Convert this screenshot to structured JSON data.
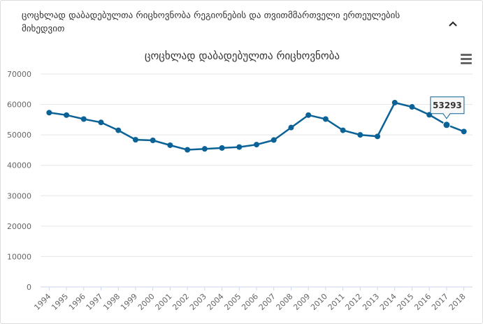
{
  "header": {
    "title": "ცოცხლად დაბადებულთა რიცხოვნობა რეგიონების და თვითმმართველი ერთეულების მიხედვით",
    "collapse_icon": "chevron-up-icon"
  },
  "toolbar": {
    "menu_icon": "hamburger-menu-icon"
  },
  "colors": {
    "series": "#0a6296",
    "grid": "#e6e6e6",
    "axis": "#ccd6eb"
  },
  "chart_data": {
    "type": "line",
    "title": "ცოცხლად დაბადებულთა რიცხოვნობა",
    "xlabel": "",
    "ylabel": "",
    "x": [
      "1994",
      "1995",
      "1996",
      "1997",
      "1998",
      "1999",
      "2000",
      "2001",
      "2002",
      "2003",
      "2004",
      "2005",
      "2006",
      "2007",
      "2008",
      "2009",
      "2010",
      "2011",
      "2012",
      "2013",
      "2014",
      "2015",
      "2016",
      "2017",
      "2018"
    ],
    "series": [
      {
        "values": [
          57300,
          56500,
          55200,
          54100,
          51500,
          48400,
          48200,
          46600,
          45100,
          45400,
          45700,
          46000,
          46800,
          48300,
          52400,
          56500,
          55200,
          51500,
          50000,
          49500,
          60600,
          59200,
          56600,
          53293,
          51100
        ]
      }
    ],
    "ylim": [
      0,
      70000
    ],
    "yticks": [
      "0",
      "10000",
      "20000",
      "30000",
      "40000",
      "50000",
      "60000",
      "70000"
    ],
    "grid": true,
    "legend": "none",
    "tooltip": {
      "x": "2017",
      "value": "53293"
    }
  }
}
